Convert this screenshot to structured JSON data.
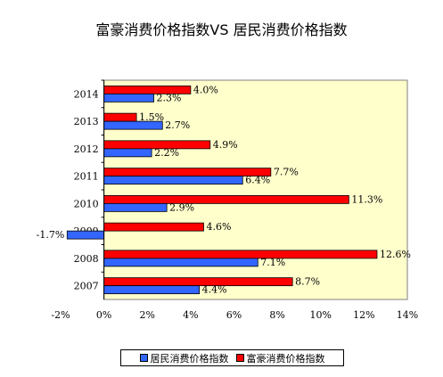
{
  "chart_data": {
    "type": "bar",
    "orientation": "horizontal",
    "title": "富豪消费价格指数VS 居民消费价格指数",
    "categories": [
      "2007",
      "2008",
      "2009",
      "2010",
      "2011",
      "2012",
      "2013",
      "2014"
    ],
    "series": [
      {
        "name": "居民消费价格指数",
        "color": "#3366ff",
        "values": [
          4.4,
          7.1,
          -1.7,
          2.9,
          6.4,
          2.2,
          2.7,
          2.3
        ],
        "labels": [
          "4.4%",
          "7.1%",
          "-1.7%",
          "2.9%",
          "6.4%",
          "2.2%",
          "2.7%",
          "2.3%"
        ]
      },
      {
        "name": "富豪消费价格指数",
        "color": "#ff0000",
        "values": [
          8.7,
          12.6,
          4.6,
          11.3,
          7.7,
          4.9,
          1.5,
          4.0
        ],
        "labels": [
          "8.7%",
          "12.6%",
          "4.6%",
          "11.3%",
          "7.7%",
          "4.9%",
          "1.5%",
          "4.0%"
        ]
      }
    ],
    "xlim": [
      -2,
      14
    ],
    "xticks": [
      -2,
      0,
      2,
      4,
      6,
      8,
      10,
      12,
      14
    ],
    "xtick_labels": [
      "-2%",
      "0%",
      "2%",
      "4%",
      "6%",
      "8%",
      "10%",
      "12%",
      "14%"
    ],
    "plot_background": "#ffffcc",
    "grid": false,
    "legend_position": "bottom"
  }
}
